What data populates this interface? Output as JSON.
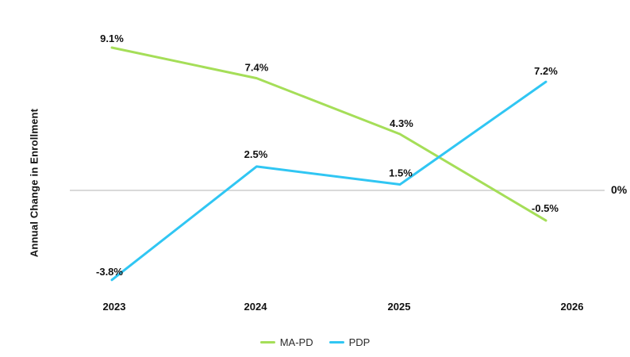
{
  "chart_data": {
    "type": "line",
    "ylabel": "Annual Change in Enrollment",
    "categories": [
      "2023",
      "2024",
      "2025",
      "2026"
    ],
    "series": [
      {
        "name": "MA-PD",
        "color": "#a5de58",
        "values": [
          9.1,
          7.4,
          4.3,
          -0.5
        ],
        "point_labels": [
          "9.1%",
          "7.4%",
          "4.3%",
          "-0.5%"
        ]
      },
      {
        "name": "PDP",
        "color": "#30c6f3",
        "values": [
          -3.8,
          2.5,
          1.5,
          7.2
        ],
        "point_labels": [
          "-3.8%",
          "2.5%",
          "1.5%",
          "7.2%"
        ]
      }
    ],
    "zero_line": {
      "label": "0%",
      "color": "#d9d9d9"
    },
    "legend_position": "bottom",
    "grid": false,
    "text_color": "#111111"
  }
}
